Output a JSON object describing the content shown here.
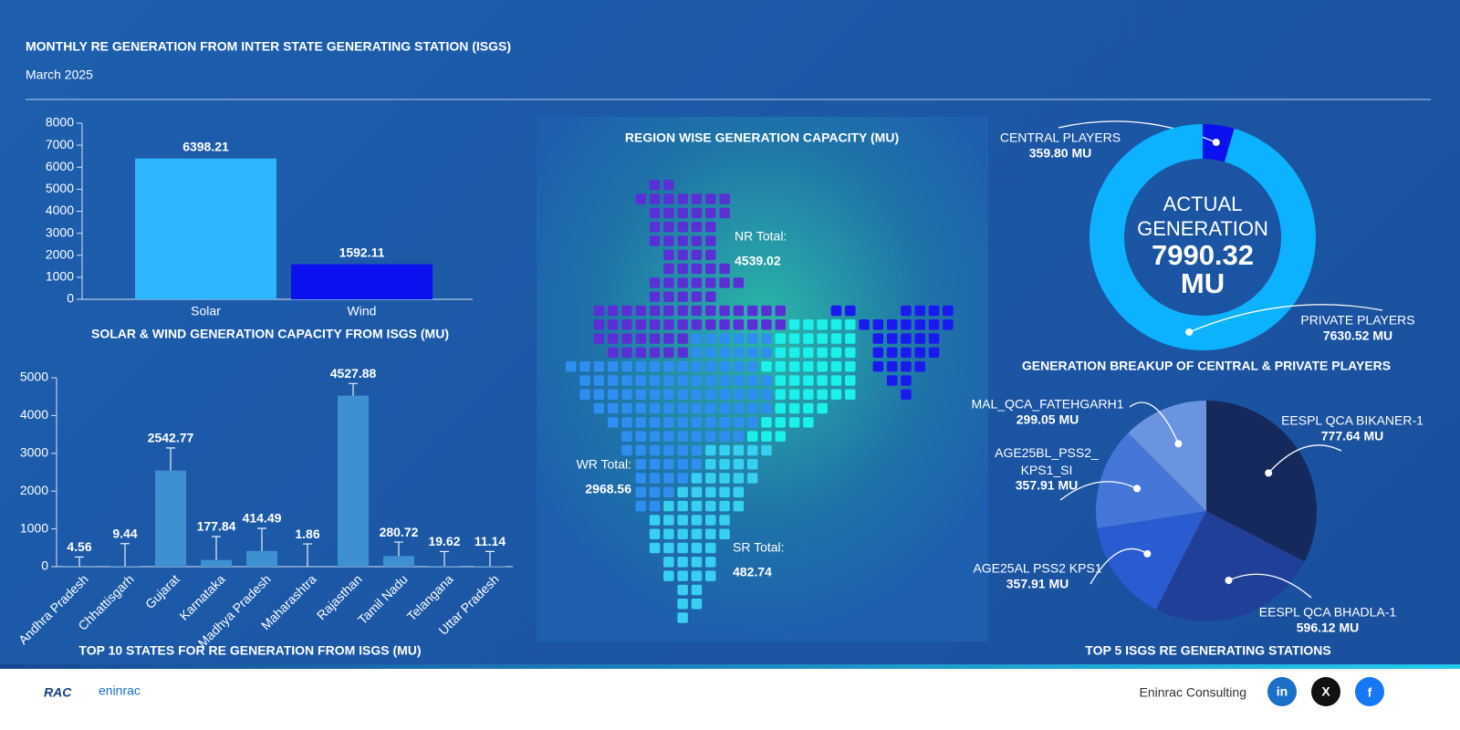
{
  "header": {
    "title": "MONTHLY RE GENERATION FROM INTER STATE GENERATING STATION (ISGS)",
    "subtitle": "March 2025"
  },
  "chart_data": [
    {
      "type": "bar",
      "title": "SOLAR & WIND GENERATION CAPACITY FROM ISGS (MU)",
      "categories": [
        "Solar",
        "Wind"
      ],
      "values": [
        6398.21,
        1592.11
      ],
      "colors": [
        "#2bb6ff",
        "#0b10ee"
      ],
      "ylim": [
        0,
        8000
      ],
      "yticks": [
        0,
        1000,
        2000,
        3000,
        4000,
        5000,
        6000,
        7000,
        8000
      ]
    },
    {
      "type": "bar",
      "title": "TOP 10 STATES FOR RE GENERATION FROM ISGS (MU)",
      "categories": [
        "Andhra Pradesh",
        "Chhattisgarh",
        "Gujarat",
        "Karnataka",
        "Madhya Pradesh",
        "Maharashtra",
        "Rajasthan",
        "Tamil Nadu",
        "Telangana",
        "Uttar Pradesh"
      ],
      "values": [
        4.56,
        9.44,
        2542.77,
        177.84,
        414.49,
        1.86,
        4527.88,
        280.72,
        19.62,
        11.14
      ],
      "errors": [
        250,
        600,
        600,
        620,
        600,
        600,
        320,
        370,
        380,
        390
      ],
      "color": "#3f90d0",
      "ylim": [
        0,
        5000
      ],
      "yticks": [
        0,
        1000,
        2000,
        3000,
        4000,
        5000
      ]
    },
    {
      "type": "donut",
      "title": "GENERATION BREAKUP OF CENTRAL & PRIVATE PLAYERS",
      "categories": [
        "CENTRAL PLAYERS",
        "PRIVATE PLAYERS"
      ],
      "values": [
        359.8,
        7630.52
      ],
      "value_labels": [
        "359.80 MU",
        "7630.52 MU"
      ],
      "colors": [
        "#0b10ee",
        "#0db2ff"
      ],
      "center_label": "ACTUAL GENERATION",
      "center_value": "7990.32 MU"
    },
    {
      "type": "pie",
      "title": "TOP 5 ISGS RE GENERATING STATIONS",
      "categories": [
        "EESPL QCA BIKANER-1",
        "EESPL QCA BHADLA-1",
        "AGE25AL PSS2 KPS1",
        "AGE25BL_PSS2_KPS1_SI",
        "MAL_QCA_FATEHGARH1"
      ],
      "values": [
        777.64,
        596.12,
        357.91,
        357.91,
        299.05
      ],
      "value_labels": [
        "777.64 MU",
        "596.12 MU",
        "357.91 MU",
        "357.91 MU",
        "299.05 MU"
      ],
      "colors": [
        "#15295c",
        "#1f3f98",
        "#2b5bd0",
        "#4677d8",
        "#6b94de"
      ]
    }
  ],
  "map": {
    "title": "REGION WISE GENERATION CAPACITY (MU)",
    "regions": [
      {
        "label": "NR Total:",
        "value": 4539.02
      },
      {
        "label": "WR Total:",
        "value": 2968.56
      },
      {
        "label": "SR Total:",
        "value": 482.74
      }
    ]
  },
  "footer": {
    "logo_mark": "RAC",
    "logo_text": "eninrac",
    "brand": "Eninrac Consulting",
    "icons": [
      "in",
      "X",
      "f"
    ]
  }
}
